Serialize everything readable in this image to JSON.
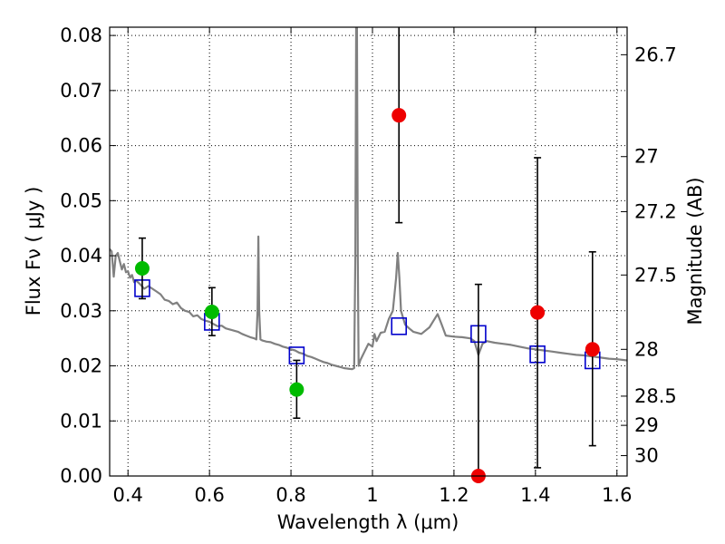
{
  "chart_data": {
    "type": "scatter",
    "xlabel": "Wavelength  λ (μm)",
    "ylabel": "Flux  Fν  ( μJy )",
    "y2label": "Magnitude (AB)",
    "xlim": [
      0.355,
      1.625
    ],
    "ylim": [
      0.0,
      0.0815
    ],
    "grid": true,
    "x_ticks": [
      {
        "value": 0.4,
        "label": "0.4"
      },
      {
        "value": 0.6,
        "label": "0.6"
      },
      {
        "value": 0.8,
        "label": "0.8"
      },
      {
        "value": 1.0,
        "label": "1"
      },
      {
        "value": 1.2,
        "label": "1.2"
      },
      {
        "value": 1.4,
        "label": "1.4"
      },
      {
        "value": 1.6,
        "label": "1.6"
      }
    ],
    "y_ticks": [
      {
        "value": 0.0,
        "label": "0.00"
      },
      {
        "value": 0.01,
        "label": "0.01"
      },
      {
        "value": 0.02,
        "label": "0.02"
      },
      {
        "value": 0.03,
        "label": "0.03"
      },
      {
        "value": 0.04,
        "label": "0.04"
      },
      {
        "value": 0.05,
        "label": "0.05"
      },
      {
        "value": 0.06,
        "label": "0.06"
      },
      {
        "value": 0.07,
        "label": "0.07"
      },
      {
        "value": 0.08,
        "label": "0.08"
      }
    ],
    "y2_ticks": [
      {
        "flux": 0.0765,
        "label": "26.7"
      },
      {
        "flux": 0.058,
        "label": "27"
      },
      {
        "flux": 0.048,
        "label": "27.2"
      },
      {
        "flux": 0.0365,
        "label": "27.5"
      },
      {
        "flux": 0.023,
        "label": "28"
      },
      {
        "flux": 0.0145,
        "label": "28.5"
      },
      {
        "flux": 0.0092,
        "label": "29"
      },
      {
        "flux": 0.0037,
        "label": "30"
      }
    ],
    "series": [
      {
        "kind": "model-spectrum",
        "color": "#808080",
        "points": [
          [
            0.355,
            0.0412
          ],
          [
            0.36,
            0.0408
          ],
          [
            0.365,
            0.0362
          ],
          [
            0.37,
            0.04
          ],
          [
            0.375,
            0.0405
          ],
          [
            0.38,
            0.039
          ],
          [
            0.385,
            0.0375
          ],
          [
            0.39,
            0.0385
          ],
          [
            0.395,
            0.037
          ],
          [
            0.4,
            0.0372
          ],
          [
            0.405,
            0.036
          ],
          [
            0.41,
            0.0365
          ],
          [
            0.415,
            0.0352
          ],
          [
            0.42,
            0.0355
          ],
          [
            0.43,
            0.0348
          ],
          [
            0.44,
            0.034
          ],
          [
            0.45,
            0.0345
          ],
          [
            0.46,
            0.034
          ],
          [
            0.47,
            0.0335
          ],
          [
            0.48,
            0.033
          ],
          [
            0.49,
            0.032
          ],
          [
            0.5,
            0.0318
          ],
          [
            0.51,
            0.0312
          ],
          [
            0.52,
            0.0315
          ],
          [
            0.53,
            0.0305
          ],
          [
            0.54,
            0.03
          ],
          [
            0.55,
            0.0298
          ],
          [
            0.56,
            0.029
          ],
          [
            0.57,
            0.0292
          ],
          [
            0.58,
            0.0285
          ],
          [
            0.59,
            0.0282
          ],
          [
            0.6,
            0.028
          ],
          [
            0.61,
            0.0276
          ],
          [
            0.62,
            0.0272
          ],
          [
            0.63,
            0.0273
          ],
          [
            0.64,
            0.0268
          ],
          [
            0.65,
            0.0266
          ],
          [
            0.66,
            0.0264
          ],
          [
            0.67,
            0.0262
          ],
          [
            0.68,
            0.0258
          ],
          [
            0.69,
            0.0255
          ],
          [
            0.7,
            0.0252
          ],
          [
            0.71,
            0.025
          ],
          [
            0.715,
            0.0248
          ],
          [
            0.718,
            0.03
          ],
          [
            0.72,
            0.0435
          ],
          [
            0.722,
            0.03
          ],
          [
            0.725,
            0.0248
          ],
          [
            0.73,
            0.0246
          ],
          [
            0.74,
            0.0244
          ],
          [
            0.75,
            0.0243
          ],
          [
            0.76,
            0.024
          ],
          [
            0.77,
            0.0238
          ],
          [
            0.78,
            0.0235
          ],
          [
            0.79,
            0.0233
          ],
          [
            0.8,
            0.023
          ],
          [
            0.81,
            0.0228
          ],
          [
            0.82,
            0.0224
          ],
          [
            0.83,
            0.0222
          ],
          [
            0.84,
            0.0218
          ],
          [
            0.85,
            0.0216
          ],
          [
            0.86,
            0.0213
          ],
          [
            0.87,
            0.021
          ],
          [
            0.88,
            0.0207
          ],
          [
            0.89,
            0.0205
          ],
          [
            0.9,
            0.0202
          ],
          [
            0.91,
            0.02
          ],
          [
            0.92,
            0.0198
          ],
          [
            0.93,
            0.0196
          ],
          [
            0.94,
            0.0195
          ],
          [
            0.95,
            0.0194
          ],
          [
            0.955,
            0.0196
          ],
          [
            0.958,
            0.04
          ],
          [
            0.96,
            0.0815
          ],
          [
            0.962,
            0.0815
          ],
          [
            0.964,
            0.04
          ],
          [
            0.966,
            0.02
          ],
          [
            0.97,
            0.021
          ],
          [
            0.98,
            0.0225
          ],
          [
            0.99,
            0.024
          ],
          [
            1.0,
            0.0235
          ],
          [
            1.005,
            0.0258
          ],
          [
            1.01,
            0.0245
          ],
          [
            1.02,
            0.026
          ],
          [
            1.03,
            0.0262
          ],
          [
            1.04,
            0.0285
          ],
          [
            1.05,
            0.03
          ],
          [
            1.058,
            0.036
          ],
          [
            1.062,
            0.0405
          ],
          [
            1.066,
            0.036
          ],
          [
            1.07,
            0.03
          ],
          [
            1.08,
            0.0275
          ],
          [
            1.09,
            0.0268
          ],
          [
            1.1,
            0.0262
          ],
          [
            1.12,
            0.0258
          ],
          [
            1.14,
            0.027
          ],
          [
            1.15,
            0.0282
          ],
          [
            1.16,
            0.0294
          ],
          [
            1.17,
            0.0275
          ],
          [
            1.18,
            0.0255
          ],
          [
            1.2,
            0.0253
          ],
          [
            1.22,
            0.0252
          ],
          [
            1.24,
            0.025
          ],
          [
            1.25,
            0.0245
          ],
          [
            1.26,
            0.022
          ],
          [
            1.27,
            0.024
          ],
          [
            1.28,
            0.0245
          ],
          [
            1.3,
            0.0242
          ],
          [
            1.32,
            0.024
          ],
          [
            1.34,
            0.0238
          ],
          [
            1.36,
            0.0235
          ],
          [
            1.38,
            0.0232
          ],
          [
            1.4,
            0.023
          ],
          [
            1.42,
            0.0228
          ],
          [
            1.44,
            0.0226
          ],
          [
            1.46,
            0.0224
          ],
          [
            1.48,
            0.0222
          ],
          [
            1.5,
            0.022
          ],
          [
            1.52,
            0.0219
          ],
          [
            1.54,
            0.0217
          ],
          [
            1.56,
            0.0215
          ],
          [
            1.58,
            0.0213
          ],
          [
            1.6,
            0.0212
          ],
          [
            1.625,
            0.021
          ]
        ]
      },
      {
        "kind": "model-photometry",
        "color": "#0000cc",
        "marker": "open-square",
        "points": [
          [
            0.435,
            0.0341
          ],
          [
            0.606,
            0.028
          ],
          [
            0.814,
            0.0219
          ],
          [
            1.065,
            0.0272
          ],
          [
            1.26,
            0.0258
          ],
          [
            1.405,
            0.0221
          ],
          [
            1.54,
            0.021
          ]
        ]
      },
      {
        "kind": "detections",
        "color": "#00bb00",
        "marker": "filled-circle",
        "points": [
          {
            "x": 0.435,
            "y": 0.0377,
            "lo": 0.0322,
            "hi": 0.0432
          },
          {
            "x": 0.606,
            "y": 0.0298,
            "lo": 0.0255,
            "hi": 0.0342
          },
          {
            "x": 0.814,
            "y": 0.0157,
            "lo": 0.0105,
            "hi": 0.021
          }
        ]
      },
      {
        "kind": "low-significance",
        "color": "#ee0000",
        "marker": "filled-circle",
        "points": [
          {
            "x": 1.065,
            "y": 0.0655,
            "lo": 0.046,
            "hi": 0.0815
          },
          {
            "x": 1.26,
            "y": 0.0,
            "lo": 0.0,
            "hi": 0.0348
          },
          {
            "x": 1.405,
            "y": 0.0297,
            "lo": 0.0015,
            "hi": 0.0578
          },
          {
            "x": 1.54,
            "y": 0.023,
            "lo": 0.0055,
            "hi": 0.0407
          }
        ]
      }
    ]
  }
}
